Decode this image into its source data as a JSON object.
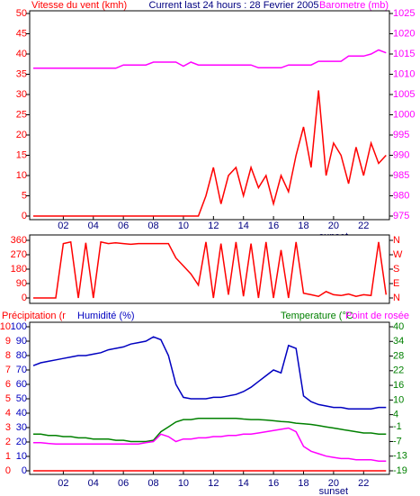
{
  "chart_data": [
    {
      "type": "line",
      "title": "Current last 24 hours : 28 Fevrier 2005",
      "x": [
        0,
        0.5,
        1,
        1.5,
        2,
        2.5,
        3,
        3.5,
        4,
        4.5,
        5,
        5.5,
        6,
        6.5,
        7,
        7.5,
        8,
        8.5,
        9,
        9.5,
        10,
        10.5,
        11,
        11.5,
        12,
        12.5,
        13,
        13.5,
        14,
        14.5,
        15,
        15.5,
        16,
        16.5,
        17,
        17.5,
        18,
        18.5,
        19,
        19.5,
        20,
        20.5,
        21,
        21.5,
        22,
        22.5,
        23,
        23.5
      ],
      "xlim": [
        0,
        23.6
      ],
      "xticks": [
        {
          "value": 2,
          "label": "02"
        },
        {
          "value": 4,
          "label": "04"
        },
        {
          "value": 6,
          "label": "06"
        },
        {
          "value": 8,
          "label": "08"
        },
        {
          "value": 10,
          "label": "10"
        },
        {
          "value": 12,
          "label": "12"
        },
        {
          "value": 14,
          "label": "14"
        },
        {
          "value": 16,
          "label": "16"
        },
        {
          "value": 18,
          "label": "18"
        },
        {
          "value": 20,
          "label": "20"
        },
        {
          "value": 22,
          "label": "22"
        }
      ],
      "ylim": [
        0,
        50
      ],
      "yticks": [
        0,
        5,
        10,
        15,
        20,
        25,
        30,
        35,
        40,
        45,
        50
      ],
      "y2lim": [
        975,
        1025
      ],
      "y2ticks": [
        975,
        980,
        985,
        990,
        995,
        1000,
        1005,
        1010,
        1015,
        1020,
        1025
      ],
      "annotations": [
        {
          "text": "sunset",
          "x": 20
        }
      ],
      "series": [
        {
          "name": "Vitesse du vent (kmh)",
          "color": "#ff0000",
          "values": [
            0,
            0,
            0,
            0,
            0,
            0,
            0,
            0,
            0,
            0,
            0,
            0,
            0,
            0,
            0,
            0,
            0,
            0,
            0,
            0,
            0,
            0,
            0,
            5,
            12,
            3,
            10,
            12,
            5,
            12,
            7,
            10,
            3,
            10,
            6,
            15,
            22,
            12,
            31,
            10,
            18,
            15,
            8,
            17,
            10,
            18,
            13,
            15
          ]
        },
        {
          "name": "Barometre (mb)",
          "color": "#ff00ff",
          "axis": "y2",
          "values": [
            1011.5,
            1011.5,
            1011.5,
            1011.5,
            1011.5,
            1011.5,
            1011.5,
            1011.5,
            1011.5,
            1011.5,
            1011.5,
            1011.5,
            1012.3,
            1012.3,
            1012.3,
            1012.3,
            1013,
            1013,
            1013,
            1013,
            1012,
            1013,
            1012.3,
            1012.3,
            1012.3,
            1012.3,
            1012.3,
            1012.3,
            1012.3,
            1012.3,
            1011.6,
            1011.6,
            1011.6,
            1011.6,
            1012.3,
            1012.3,
            1012.3,
            1012.3,
            1013.2,
            1013.2,
            1013.2,
            1013.2,
            1014.5,
            1014.5,
            1014.5,
            1015,
            1016,
            1015.3
          ]
        }
      ]
    },
    {
      "type": "line",
      "x": [
        0,
        0.5,
        1,
        1.5,
        2,
        2.5,
        3,
        3.5,
        4,
        4.5,
        5,
        5.5,
        6,
        6.5,
        7,
        7.5,
        8,
        8.5,
        9,
        9.5,
        10,
        10.5,
        11,
        11.5,
        12,
        12.5,
        13,
        13.5,
        14,
        14.5,
        15,
        15.5,
        16,
        16.5,
        17,
        17.5,
        18,
        18.5,
        19,
        19.5,
        20,
        20.5,
        21,
        21.5,
        22,
        22.5,
        23,
        23.5
      ],
      "xlim": [
        0,
        23.6
      ],
      "ylim": [
        0,
        360
      ],
      "yticks": [
        0,
        90,
        180,
        270,
        360
      ],
      "y2lim": [
        0,
        360
      ],
      "y2ticks": [
        {
          "value": 0,
          "label": "N"
        },
        {
          "value": 90,
          "label": "E"
        },
        {
          "value": 180,
          "label": "S"
        },
        {
          "value": 270,
          "label": "W"
        },
        {
          "value": 360,
          "label": "N"
        }
      ],
      "series": [
        {
          "color": "#ff0000",
          "values": [
            0,
            0,
            0,
            0,
            340,
            350,
            0,
            345,
            0,
            350,
            340,
            345,
            340,
            335,
            340,
            340,
            340,
            340,
            340,
            250,
            200,
            150,
            80,
            350,
            0,
            340,
            20,
            350,
            10,
            340,
            0,
            350,
            0,
            300,
            0,
            350,
            30,
            20,
            10,
            40,
            20,
            15,
            25,
            10,
            20,
            15,
            350,
            20
          ]
        }
      ]
    },
    {
      "type": "line",
      "x": [
        0,
        0.5,
        1,
        1.5,
        2,
        2.5,
        3,
        3.5,
        4,
        4.5,
        5,
        5.5,
        6,
        6.5,
        7,
        7.5,
        8,
        8.5,
        9,
        9.5,
        10,
        10.5,
        11,
        11.5,
        12,
        12.5,
        13,
        13.5,
        14,
        14.5,
        15,
        15.5,
        16,
        16.5,
        17,
        17.5,
        18,
        18.5,
        19,
        19.5,
        20,
        20.5,
        21,
        21.5,
        22,
        22.5,
        23,
        23.5
      ],
      "xlim": [
        0,
        23.6
      ],
      "xticks": [
        {
          "value": 2,
          "label": "02"
        },
        {
          "value": 4,
          "label": "04"
        },
        {
          "value": 6,
          "label": "06"
        },
        {
          "value": 8,
          "label": "08"
        },
        {
          "value": 10,
          "label": "10"
        },
        {
          "value": 12,
          "label": "12"
        },
        {
          "value": 14,
          "label": "14"
        },
        {
          "value": 16,
          "label": "16"
        },
        {
          "value": 18,
          "label": "18"
        },
        {
          "value": 20,
          "label": "20"
        },
        {
          "value": 22,
          "label": "22"
        }
      ],
      "ylim": [
        0,
        100
      ],
      "yticks": [
        0,
        10,
        20,
        30,
        40,
        50,
        60,
        70,
        80,
        90,
        100
      ],
      "y2lim": [
        -19,
        40
      ],
      "y2ticks": [
        -19,
        -13,
        -7,
        -1,
        4,
        10,
        16,
        22,
        28,
        34,
        40
      ],
      "y3lim": [
        0,
        10
      ],
      "y3ticks": [
        0,
        1,
        2,
        3,
        4,
        5,
        6,
        7,
        8,
        9,
        10
      ],
      "annotations": [
        {
          "text": "sunset",
          "x": 20
        }
      ],
      "series": [
        {
          "name": "Précipitation (r",
          "color": "#ff0000",
          "axis": "y3",
          "values": [
            0,
            0,
            0,
            0,
            0,
            0,
            0,
            0,
            0,
            0,
            0,
            0,
            0,
            0,
            0,
            0,
            0,
            0,
            0,
            0,
            0,
            0,
            0,
            0,
            0,
            0,
            0,
            0,
            0,
            0,
            0,
            0,
            0,
            0,
            0,
            0,
            0,
            0,
            0,
            0,
            0,
            0,
            0,
            0,
            0,
            0,
            0,
            0
          ]
        },
        {
          "name": "Humidité (%)",
          "color": "#0000c0",
          "values": [
            73,
            75,
            76,
            77,
            78,
            79,
            80,
            80,
            81,
            82,
            84,
            85,
            86,
            88,
            89,
            90,
            93,
            91,
            80,
            60,
            51,
            50,
            50,
            50,
            51,
            51,
            52,
            53,
            55,
            58,
            62,
            66,
            70,
            68,
            87,
            85,
            52,
            48,
            46,
            45,
            44,
            44,
            43,
            43,
            43,
            43,
            44,
            44
          ]
        },
        {
          "name": "Temperature (°C",
          "color": "#008000",
          "axis": "y2",
          "values": [
            -4,
            -4,
            -4.5,
            -4.5,
            -5,
            -5,
            -5.5,
            -5.5,
            -6,
            -6,
            -6,
            -6.5,
            -6.5,
            -7,
            -7,
            -7,
            -6.5,
            -3,
            -1,
            1,
            2,
            2,
            2.5,
            2.5,
            2.5,
            2.5,
            2.5,
            2.5,
            2.2,
            2,
            2,
            1.8,
            1.5,
            1.2,
            1,
            0.5,
            0.3,
            0,
            -0.5,
            -1,
            -1.5,
            -2,
            -2.5,
            -3,
            -3.5,
            -3.5,
            -4,
            -4
          ]
        },
        {
          "name": "Point de rosée",
          "color": "#ff00ff",
          "axis": "y2",
          "values": [
            -7.5,
            -7.5,
            -7.8,
            -8,
            -8,
            -8,
            -8,
            -8,
            -8,
            -8,
            -8,
            -8,
            -8,
            -8,
            -8,
            -7.5,
            -7,
            -4,
            -5,
            -7,
            -6,
            -6,
            -5.5,
            -5.5,
            -5,
            -5,
            -4.5,
            -4.5,
            -4,
            -4,
            -3.5,
            -3,
            -2.5,
            -2,
            -1.5,
            -3,
            -9,
            -11,
            -12,
            -13,
            -13.5,
            -14,
            -14,
            -14.5,
            -14.5,
            -14.5,
            -15,
            -15
          ]
        }
      ]
    }
  ]
}
